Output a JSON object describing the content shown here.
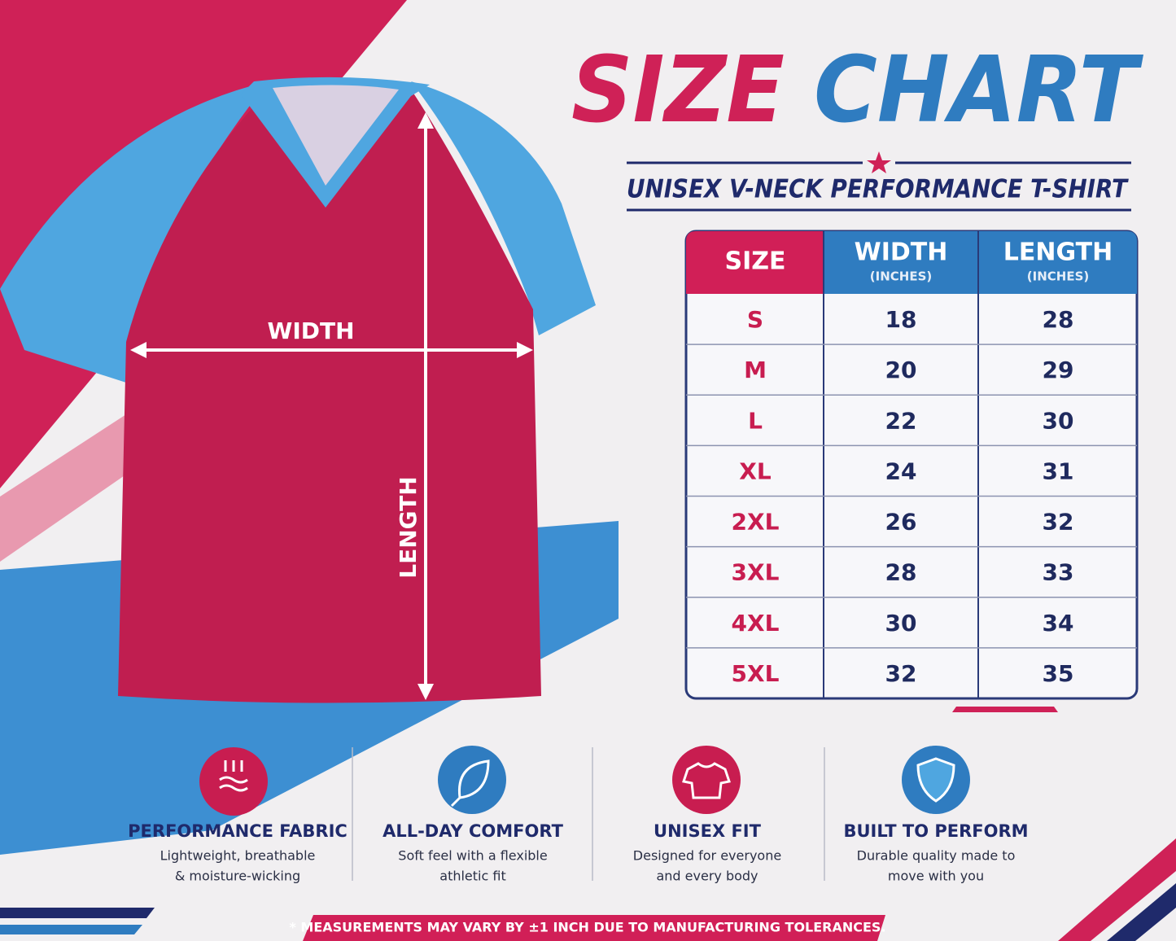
{
  "title": [
    "SIZE",
    "CHART"
  ],
  "subtitle": "UNISEX V-NECK PERFORMANCE T-SHIRT",
  "diagram": {
    "width_label": "WIDTH",
    "length_label": "LENGTH"
  },
  "table": {
    "columns": [
      {
        "label": "SIZE"
      },
      {
        "label": "WIDTH",
        "unit": "(INCHES)"
      },
      {
        "label": "LENGTH",
        "unit": "(INCHES)"
      }
    ],
    "rows": [
      [
        "S",
        18,
        28
      ],
      [
        "M",
        20,
        29
      ],
      [
        "L",
        22,
        30
      ],
      [
        "XL",
        24,
        31
      ],
      [
        "2XL",
        26,
        32
      ],
      [
        "3XL",
        28,
        33
      ],
      [
        "4XL",
        30,
        34
      ],
      [
        "5XL",
        32,
        35
      ]
    ]
  },
  "features": [
    {
      "title": "PERFORMANCE FABRIC",
      "lines": [
        "Lightweight, breathable",
        "& moisture-wicking"
      ]
    },
    {
      "title": "ALL-DAY COMFORT",
      "lines": [
        "Soft feel with a flexible",
        "athletic fit"
      ]
    },
    {
      "title": "UNISEX FIT",
      "lines": [
        "Designed for everyone",
        "and every body"
      ]
    },
    {
      "title": "BUILT TO PERFORM",
      "lines": [
        "Durable quality made to",
        "move with you"
      ]
    }
  ],
  "footnote": "* MEASUREMENTS MAY VARY BY ±1 INCH DUE TO MANUFACTURING TOLERANCES."
}
